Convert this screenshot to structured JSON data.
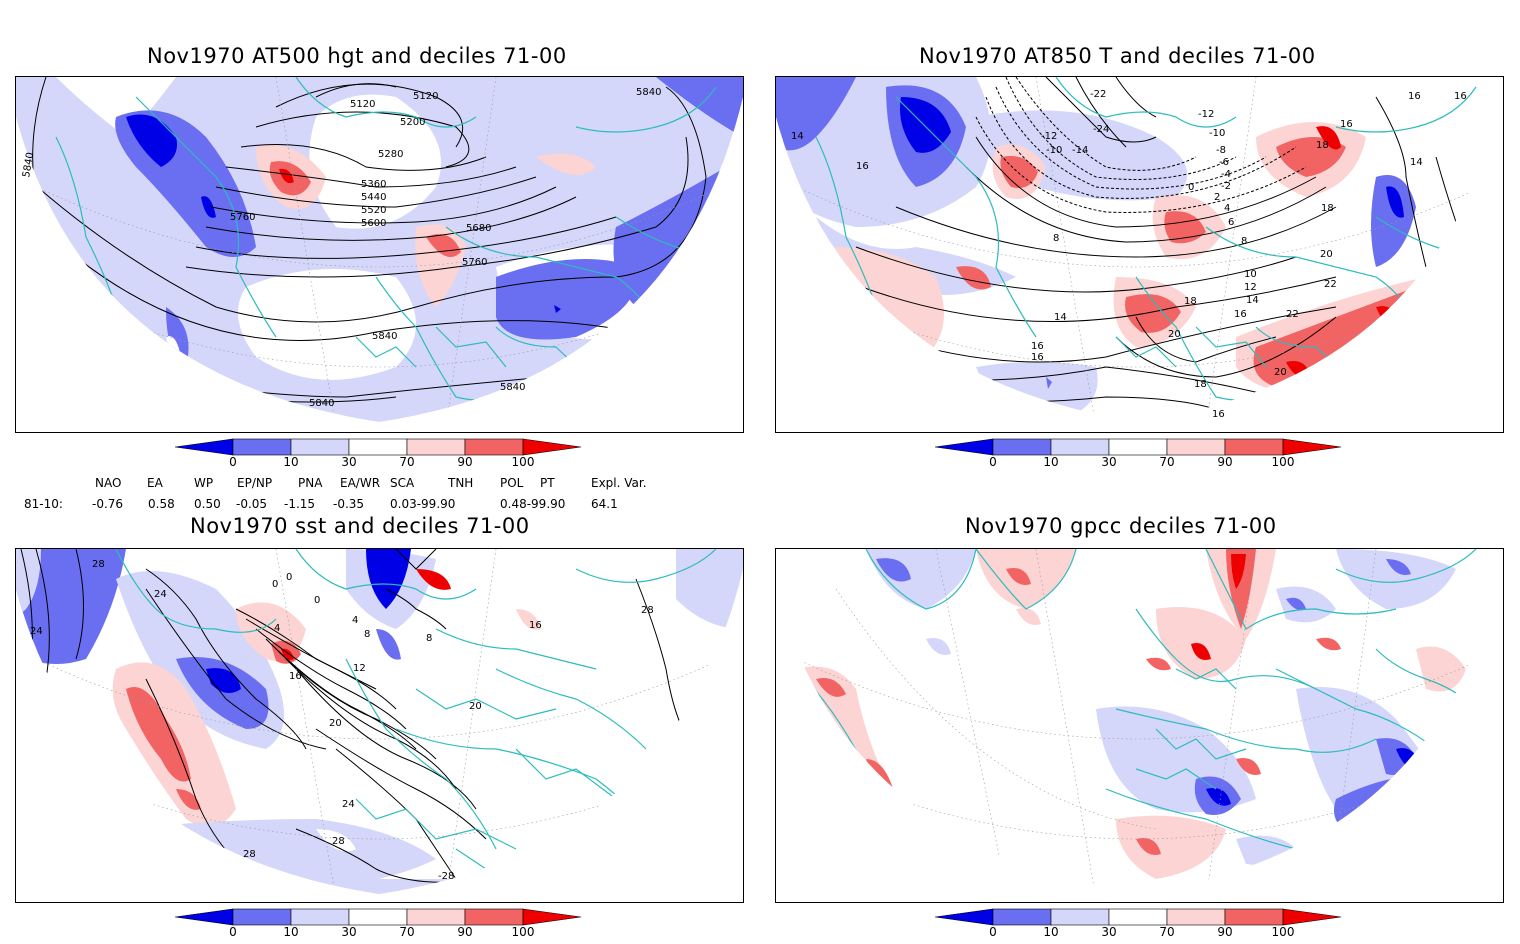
{
  "panels": {
    "top_left": {
      "title": "Nov1970 AT500 hgt and deciles 71-00"
    },
    "top_right": {
      "title": "Nov1970 AT850 T and deciles 71-00"
    },
    "bottom_left": {
      "title": "Nov1970 sst and deciles 71-00"
    },
    "bottom_right": {
      "title": "Nov1970 gpcc deciles 71-00"
    }
  },
  "colorbar": {
    "ticks": [
      "0",
      "10",
      "30",
      "70",
      "90",
      "100"
    ],
    "colors": [
      "#0000e6",
      "#6a6ef0",
      "#d4d6fa",
      "#ffffff",
      "#fcd4d4",
      "#f26464",
      "#ee0000"
    ]
  },
  "contour_labels": {
    "top_left": [
      "5120",
      "5120",
      "5200",
      "5280",
      "5360",
      "5440",
      "5520",
      "5600",
      "5680",
      "5760",
      "5760",
      "5840",
      "5840",
      "5840",
      "5840",
      "5840"
    ],
    "top_right": [
      "-22",
      "-24",
      "-12",
      "-10",
      "-14",
      "-12",
      "-10",
      "-8",
      "-6",
      "-4",
      "-2",
      "0",
      "2",
      "4",
      "6",
      "8",
      "8",
      "10",
      "12",
      "14",
      "14",
      "16",
      "16",
      "16",
      "16",
      "16",
      "18",
      "18",
      "18",
      "20",
      "20",
      "20",
      "22",
      "22",
      "14",
      "16",
      "16",
      "18",
      "16",
      "14"
    ],
    "bottom_left": [
      "28",
      "24",
      "24",
      "0",
      "0",
      "0",
      "4",
      "4",
      "8",
      "8",
      "12",
      "16",
      "16",
      "20",
      "20",
      "24",
      "28",
      "28",
      "-28",
      "28"
    ]
  },
  "teleconnections": {
    "headers": [
      "NAO",
      "EA",
      "WP",
      "EP/NP",
      "PNA",
      "EA/WR",
      "SCA",
      "TNH",
      "POL",
      "PT",
      "Expl. Var."
    ],
    "row_label": "81-10:",
    "values": [
      "-0.76",
      "0.58",
      "0.50",
      "-0.05",
      "-1.15",
      "-0.35",
      "0.03-99.90",
      "0.48-99.90",
      "64.1"
    ]
  }
}
